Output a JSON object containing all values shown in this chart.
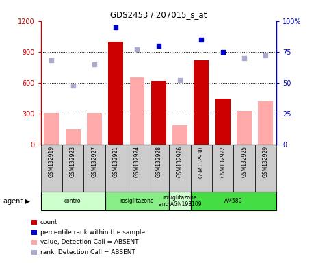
{
  "title": "GDS2453 / 207015_s_at",
  "samples": [
    "GSM132919",
    "GSM132923",
    "GSM132927",
    "GSM132921",
    "GSM132924",
    "GSM132928",
    "GSM132926",
    "GSM132930",
    "GSM132922",
    "GSM132925",
    "GSM132929"
  ],
  "count_values": [
    null,
    null,
    null,
    1000,
    null,
    620,
    null,
    820,
    450,
    null,
    null
  ],
  "count_absent_values": [
    310,
    150,
    310,
    null,
    650,
    null,
    190,
    null,
    null,
    330,
    420
  ],
  "rank_present_values": [
    null,
    null,
    null,
    95,
    null,
    80,
    null,
    85,
    75,
    null,
    null
  ],
  "rank_absent_values": [
    68,
    48,
    65,
    null,
    77,
    null,
    52,
    null,
    null,
    70,
    72
  ],
  "ylim_left": [
    0,
    1200
  ],
  "ylim_right": [
    0,
    100
  ],
  "yticks_left": [
    0,
    300,
    600,
    900,
    1200
  ],
  "yticks_right": [
    0,
    25,
    50,
    75,
    100
  ],
  "ytick_labels_left": [
    "0",
    "300",
    "600",
    "900",
    "1200"
  ],
  "ytick_labels_right": [
    "0",
    "25",
    "50",
    "75",
    "100%"
  ],
  "left_axis_color": "#cc0000",
  "right_axis_color": "#0000cc",
  "bar_color_present": "#cc0000",
  "bar_color_absent": "#ffaaaa",
  "dot_color_present": "#0000cc",
  "dot_color_absent": "#aaaacc",
  "agent_groups": [
    {
      "label": "control",
      "start": 0,
      "end": 3,
      "color": "#ccffcc"
    },
    {
      "label": "rosiglitazone",
      "start": 3,
      "end": 6,
      "color": "#88ee88"
    },
    {
      "label": "rosiglitazone\nand AGN193109",
      "start": 6,
      "end": 7,
      "color": "#ccffcc"
    },
    {
      "label": "AM580",
      "start": 7,
      "end": 11,
      "color": "#44dd44"
    }
  ],
  "background_sample_row": "#cccccc",
  "legend_items": [
    {
      "color": "#cc0000",
      "label": "count"
    },
    {
      "color": "#0000cc",
      "label": "percentile rank within the sample"
    },
    {
      "color": "#ffaaaa",
      "label": "value, Detection Call = ABSENT"
    },
    {
      "color": "#aaaacc",
      "label": "rank, Detection Call = ABSENT"
    }
  ]
}
